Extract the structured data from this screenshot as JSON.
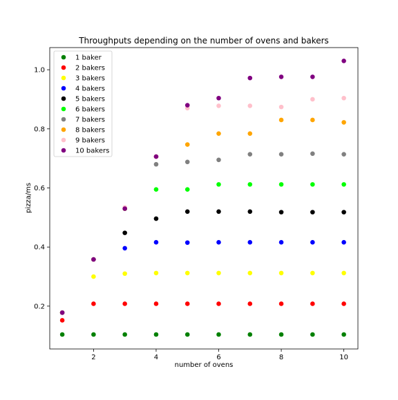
{
  "chart_data": {
    "type": "scatter",
    "title": "Throughputs depending on the number of ovens and bakers",
    "xlabel": "number of ovens",
    "ylabel": "pizza/ms",
    "x": [
      1,
      2,
      3,
      4,
      5,
      6,
      7,
      8,
      9,
      10
    ],
    "xlim": [
      0.6,
      10.45
    ],
    "ylim": [
      0.055,
      1.075
    ],
    "xticks": [
      2,
      4,
      6,
      8,
      10
    ],
    "yticks": [
      0.2,
      0.4,
      0.6,
      0.8,
      1.0
    ],
    "xtick_labels": [
      "2",
      "4",
      "6",
      "8",
      "10"
    ],
    "ytick_labels": [
      "0.2",
      "0.4",
      "0.6",
      "0.8",
      "1.0"
    ],
    "grid": false,
    "legend_position": "top-left",
    "series": [
      {
        "name": "1 baker",
        "color": "#008000",
        "values": [
          0.104,
          0.104,
          0.104,
          0.104,
          0.104,
          0.104,
          0.104,
          0.104,
          0.104,
          0.104
        ]
      },
      {
        "name": "2 bakers",
        "color": "#ff0000",
        "values": [
          0.152,
          0.208,
          0.208,
          0.208,
          0.208,
          0.208,
          0.208,
          0.208,
          0.208,
          0.208
        ]
      },
      {
        "name": "3 bakers",
        "color": "#ffff00",
        "values": [
          0.178,
          0.3,
          0.31,
          0.312,
          0.312,
          0.312,
          0.312,
          0.312,
          0.312,
          0.312
        ]
      },
      {
        "name": "4 bakers",
        "color": "#0000ff",
        "values": [
          0.178,
          0.358,
          0.396,
          0.416,
          0.415,
          0.416,
          0.416,
          0.416,
          0.416,
          0.416
        ]
      },
      {
        "name": "5 bakers",
        "color": "#000000",
        "values": [
          0.178,
          0.358,
          0.448,
          0.496,
          0.52,
          0.52,
          0.52,
          0.518,
          0.518,
          0.518
        ]
      },
      {
        "name": "6 bakers",
        "color": "#00ff00",
        "values": [
          0.178,
          0.358,
          0.53,
          0.595,
          0.595,
          0.612,
          0.612,
          0.612,
          0.612,
          0.612
        ]
      },
      {
        "name": "7 bakers",
        "color": "#808080",
        "values": [
          0.178,
          0.358,
          0.53,
          0.68,
          0.688,
          0.695,
          0.714,
          0.714,
          0.716,
          0.714
        ]
      },
      {
        "name": "8 bakers",
        "color": "#ffa500",
        "values": [
          0.178,
          0.358,
          0.53,
          0.706,
          0.747,
          0.784,
          0.784,
          0.83,
          0.83,
          0.822
        ]
      },
      {
        "name": "9 bakers",
        "color": "#ffc0cb",
        "values": [
          0.178,
          0.358,
          0.534,
          0.706,
          0.87,
          0.878,
          0.878,
          0.874,
          0.9,
          0.904
        ]
      },
      {
        "name": "10 bakers",
        "color": "#800080",
        "values": [
          0.178,
          0.358,
          0.53,
          0.706,
          0.88,
          0.904,
          0.972,
          0.976,
          0.976,
          1.03
        ]
      }
    ]
  }
}
